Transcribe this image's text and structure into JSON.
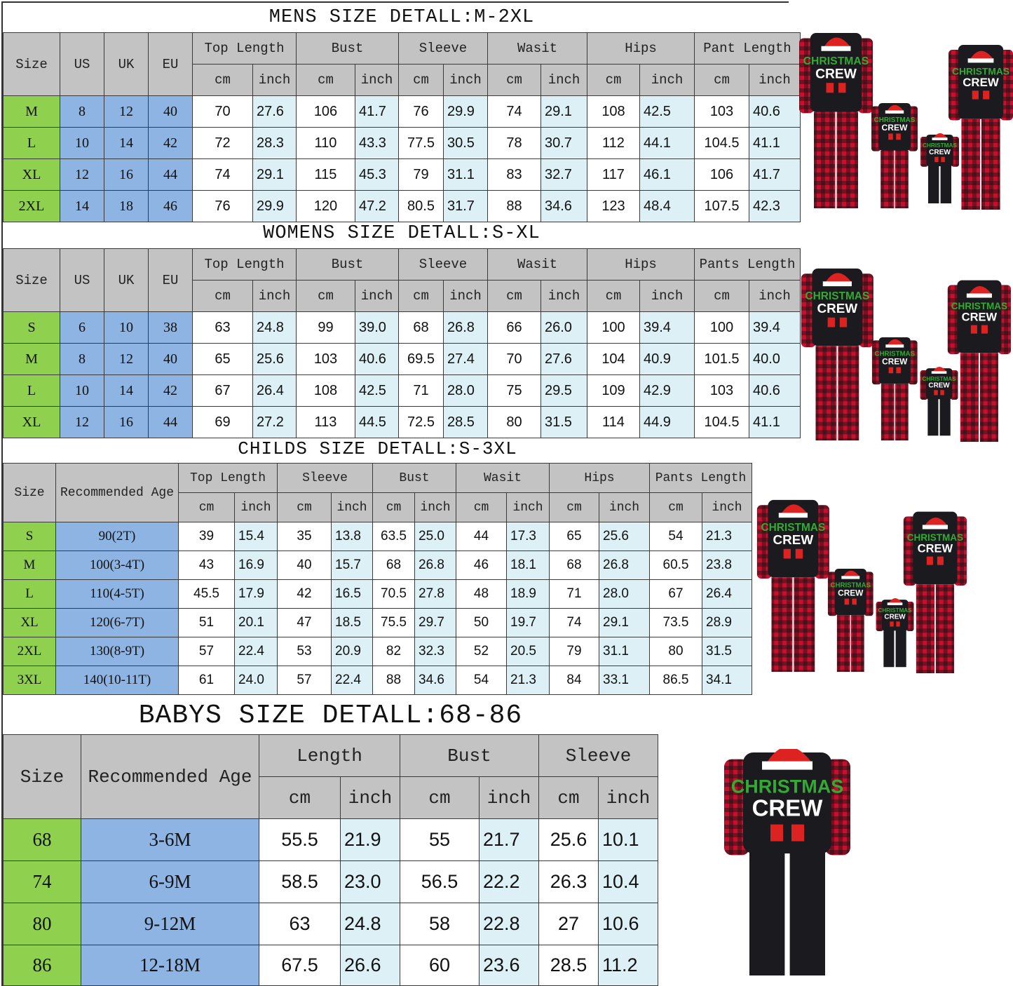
{
  "tables": {
    "mens": {
      "title": "MENS SIZE DETALL:M-2XL",
      "fixed_headers": [
        "Size",
        "US",
        "UK",
        "EU"
      ],
      "groups": [
        "Top Length",
        "Bust",
        "Sleeve",
        "Wasit",
        "Hips",
        "Pant Length"
      ],
      "sub": [
        "cm",
        "inch"
      ],
      "rows": [
        [
          "M",
          "8",
          "12",
          "40",
          "70",
          "27.6",
          "106",
          "41.7",
          "76",
          "29.9",
          "74",
          "29.1",
          "108",
          "42.5",
          "103",
          "40.6"
        ],
        [
          "L",
          "10",
          "14",
          "42",
          "72",
          "28.3",
          "110",
          "43.3",
          "77.5",
          "30.5",
          "78",
          "30.7",
          "112",
          "44.1",
          "104.5",
          "41.1"
        ],
        [
          "XL",
          "12",
          "16",
          "44",
          "74",
          "29.1",
          "115",
          "45.3",
          "79",
          "31.1",
          "83",
          "32.7",
          "117",
          "46.1",
          "106",
          "41.7"
        ],
        [
          "2XL",
          "14",
          "18",
          "46",
          "76",
          "29.9",
          "120",
          "47.2",
          "80.5",
          "31.7",
          "88",
          "34.6",
          "123",
          "48.4",
          "107.5",
          "42.3"
        ]
      ]
    },
    "womens": {
      "title": "WOMENS SIZE DETALL:S-XL",
      "fixed_headers": [
        "Size",
        "US",
        "UK",
        "EU"
      ],
      "groups": [
        "Top Length",
        "Bust",
        "Sleeve",
        "Wasit",
        "Hips",
        "Pants Length"
      ],
      "sub": [
        "cm",
        "inch"
      ],
      "rows": [
        [
          "S",
          "6",
          "10",
          "38",
          "63",
          "24.8",
          "99",
          "39.0",
          "68",
          "26.8",
          "66",
          "26.0",
          "100",
          "39.4",
          "100",
          "39.4"
        ],
        [
          "M",
          "8",
          "12",
          "40",
          "65",
          "25.6",
          "103",
          "40.6",
          "69.5",
          "27.4",
          "70",
          "27.6",
          "104",
          "40.9",
          "101.5",
          "40.0"
        ],
        [
          "L",
          "10",
          "14",
          "42",
          "67",
          "26.4",
          "108",
          "42.5",
          "71",
          "28.0",
          "75",
          "29.5",
          "109",
          "42.9",
          "103",
          "40.6"
        ],
        [
          "XL",
          "12",
          "16",
          "44",
          "69",
          "27.2",
          "113",
          "44.5",
          "72.5",
          "28.5",
          "80",
          "31.5",
          "114",
          "44.9",
          "104.5",
          "41.1"
        ]
      ]
    },
    "childs": {
      "title": "CHILDS SIZE DETALL:S-3XL",
      "fixed_headers": [
        "Size",
        "Recommended Age"
      ],
      "groups": [
        "Top Length",
        "Sleeve",
        "Bust",
        "Wasit",
        "Hips",
        "Pants Length"
      ],
      "sub": [
        "cm",
        "inch"
      ],
      "rows": [
        [
          "S",
          "90(2T)",
          "39",
          "15.4",
          "35",
          "13.8",
          "63.5",
          "25.0",
          "44",
          "17.3",
          "65",
          "25.6",
          "54",
          "21.3"
        ],
        [
          "M",
          "100(3-4T)",
          "43",
          "16.9",
          "40",
          "15.7",
          "68",
          "26.8",
          "46",
          "18.1",
          "68",
          "26.8",
          "60.5",
          "23.8"
        ],
        [
          "L",
          "110(4-5T)",
          "45.5",
          "17.9",
          "42",
          "16.5",
          "70.5",
          "27.8",
          "48",
          "18.9",
          "71",
          "28.0",
          "67",
          "26.4"
        ],
        [
          "XL",
          "120(6-7T)",
          "51",
          "20.1",
          "47",
          "18.5",
          "75.5",
          "29.7",
          "50",
          "19.7",
          "74",
          "29.1",
          "73.5",
          "28.9"
        ],
        [
          "2XL",
          "130(8-9T)",
          "57",
          "22.4",
          "53",
          "20.9",
          "82",
          "32.3",
          "52",
          "20.5",
          "79",
          "31.1",
          "80",
          "31.5"
        ],
        [
          "3XL",
          "140(10-11T)",
          "61",
          "24.0",
          "57",
          "22.4",
          "88",
          "34.6",
          "54",
          "21.3",
          "84",
          "33.1",
          "86.5",
          "34.1"
        ]
      ]
    },
    "babys": {
      "title": "BABYS SIZE DETALL:68-86",
      "fixed_headers": [
        "Size",
        "Recommended Age"
      ],
      "groups": [
        "Length",
        "Bust",
        "Sleeve"
      ],
      "sub": [
        "cm",
        "inch"
      ],
      "rows": [
        [
          "68",
          "3-6M",
          "55.5",
          "21.9",
          "55",
          "21.7",
          "25.6",
          "10.1"
        ],
        [
          "74",
          "6-9M",
          "58.5",
          "23.0",
          "56.5",
          "22.2",
          "26.3",
          "10.4"
        ],
        [
          "80",
          "9-12M",
          "63",
          "24.8",
          "58",
          "22.8",
          "27",
          "10.6"
        ],
        [
          "86",
          "12-18M",
          "67.5",
          "26.6",
          "60",
          "23.6",
          "28.5",
          "11.2"
        ]
      ]
    }
  },
  "product_images": [
    {
      "name": "family-pajama-set-mens",
      "print": "CHRISTMAS CREW"
    },
    {
      "name": "family-pajama-set-womens",
      "print": "CHRISTMAS CREW"
    },
    {
      "name": "family-pajama-set-childs",
      "print": "CHRISTMAS CREW"
    },
    {
      "name": "baby-romper",
      "print": "CHRISTMAS CREW"
    }
  ],
  "colors": {
    "header_gray": "#c3c3c3",
    "size_green": "#8fd14f",
    "conversion_blue": "#8db4e2",
    "inch_light_blue": "#dcf0f6",
    "plaid_red": "#c8102e",
    "shirt_black": "#1b1b1f"
  }
}
